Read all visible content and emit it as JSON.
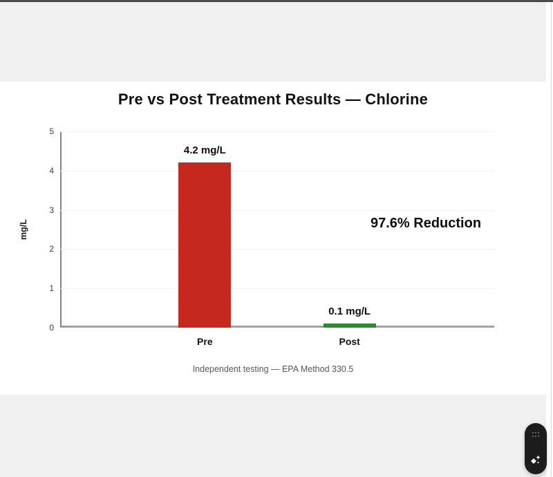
{
  "chart_data": {
    "type": "bar",
    "title": "Pre vs Post Treatment Results — Chlorine",
    "categories": [
      "Pre",
      "Post"
    ],
    "values": [
      4.2,
      0.1
    ],
    "value_labels": [
      "4.2 mg/L",
      "0.1 mg/L"
    ],
    "bar_colors": [
      "#c5281e",
      "#2b8a2b"
    ],
    "xlabel": "",
    "ylabel": "mg/L",
    "ylim": [
      0,
      5
    ],
    "ytick_step": 1,
    "yticks": [
      0,
      1,
      2,
      3,
      4,
      5
    ],
    "grid": true,
    "legend": "none",
    "annotation": "97.6% Reduction",
    "caption": "Independent testing — EPA Method 330.5"
  },
  "page": {
    "title": "Pre vs Post Treatment Results — Chlorine",
    "annotation": "97.6% Reduction",
    "caption": "Independent testing — EPA Method 330.5"
  },
  "icons": {
    "drag_handle": "drag-handle-dots-icon",
    "sparkle": "ai-sparkle-icon"
  },
  "colors": {
    "bar_pre": "#c5281e",
    "bar_post": "#2b8a2b",
    "panel_gray": "#f0f0f0",
    "top_edge": "#4b4b4b",
    "pill_background": "#1d1d1f",
    "axis_line": "#8a8a8a"
  }
}
